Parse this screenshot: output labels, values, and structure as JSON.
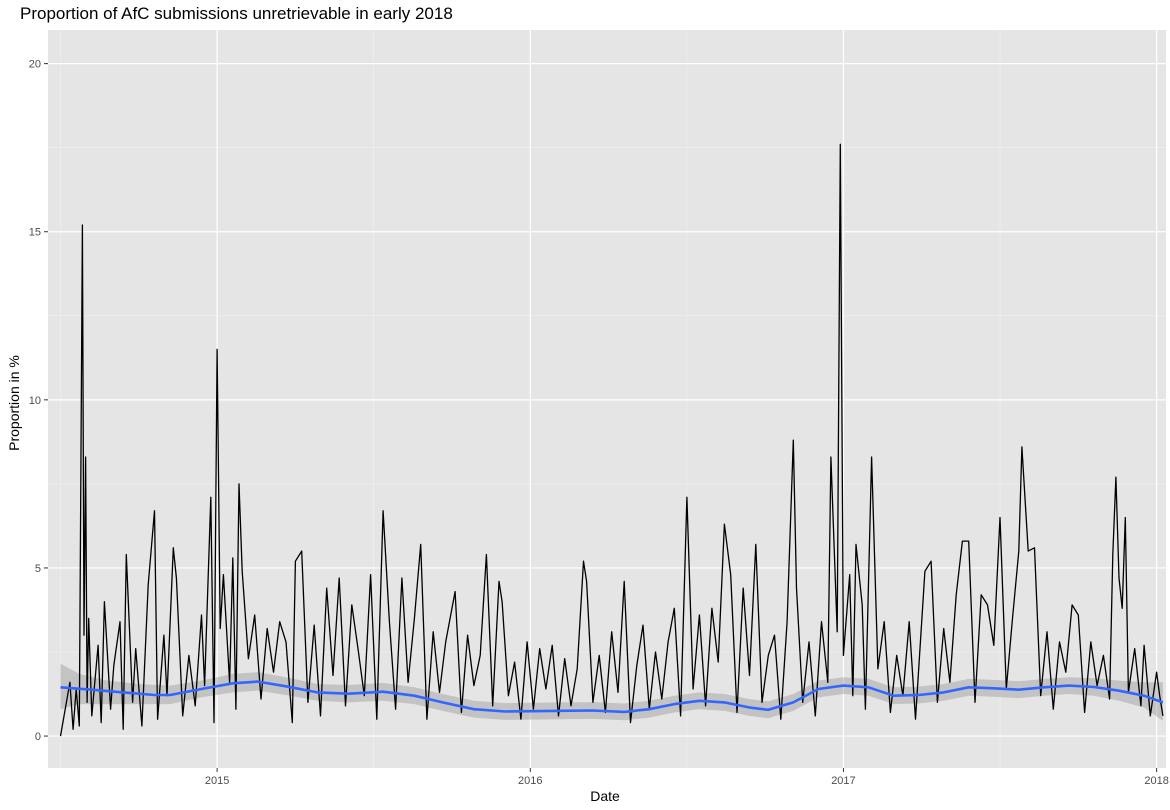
{
  "chart_data": {
    "type": "line",
    "title": "Proportion of AfC submissions unretrievable in early 2018",
    "xlabel": "Date",
    "ylabel": "Proportion in %",
    "xlim": [
      2014.46,
      2018.03
    ],
    "ylim": [
      -0.95,
      21.0
    ],
    "x_ticks": [
      {
        "value": 2015,
        "label": "2015"
      },
      {
        "value": 2016,
        "label": "2016"
      },
      {
        "value": 2017,
        "label": "2017"
      },
      {
        "value": 2018,
        "label": "2018"
      }
    ],
    "y_ticks": [
      {
        "value": 0,
        "label": "0"
      },
      {
        "value": 5,
        "label": "5"
      },
      {
        "value": 10,
        "label": "10"
      },
      {
        "value": 15,
        "label": "15"
      },
      {
        "value": 20,
        "label": "20"
      }
    ],
    "grid": true,
    "background_color": "#e5e5e5",
    "series": [
      {
        "color": "#000000",
        "values": [
          [
            2014.5,
            0.0
          ],
          [
            2014.53,
            1.6
          ],
          [
            2014.54,
            0.2
          ],
          [
            2014.55,
            1.4
          ],
          [
            2014.56,
            0.3
          ],
          [
            2014.57,
            15.2
          ],
          [
            2014.575,
            3.0
          ],
          [
            2014.58,
            8.3
          ],
          [
            2014.585,
            1.0
          ],
          [
            2014.59,
            3.5
          ],
          [
            2014.6,
            0.6
          ],
          [
            2014.62,
            2.7
          ],
          [
            2014.63,
            0.4
          ],
          [
            2014.64,
            4.0
          ],
          [
            2014.66,
            0.8
          ],
          [
            2014.67,
            2.1
          ],
          [
            2014.69,
            3.4
          ],
          [
            2014.7,
            0.2
          ],
          [
            2014.71,
            5.4
          ],
          [
            2014.73,
            1.0
          ],
          [
            2014.74,
            2.6
          ],
          [
            2014.76,
            0.3
          ],
          [
            2014.78,
            4.5
          ],
          [
            2014.8,
            6.7
          ],
          [
            2014.81,
            0.5
          ],
          [
            2014.83,
            3.0
          ],
          [
            2014.84,
            1.2
          ],
          [
            2014.86,
            5.6
          ],
          [
            2014.87,
            4.7
          ],
          [
            2014.89,
            0.6
          ],
          [
            2014.91,
            2.4
          ],
          [
            2014.93,
            0.9
          ],
          [
            2014.95,
            3.6
          ],
          [
            2014.96,
            1.5
          ],
          [
            2014.98,
            7.1
          ],
          [
            2014.99,
            0.4
          ],
          [
            2015.0,
            11.5
          ],
          [
            2015.01,
            3.2
          ],
          [
            2015.02,
            4.8
          ],
          [
            2015.04,
            1.6
          ],
          [
            2015.05,
            5.3
          ],
          [
            2015.06,
            0.8
          ],
          [
            2015.07,
            7.5
          ],
          [
            2015.08,
            4.9
          ],
          [
            2015.1,
            2.3
          ],
          [
            2015.12,
            3.6
          ],
          [
            2015.14,
            1.1
          ],
          [
            2015.16,
            3.2
          ],
          [
            2015.18,
            1.9
          ],
          [
            2015.2,
            3.4
          ],
          [
            2015.22,
            2.8
          ],
          [
            2015.24,
            0.4
          ],
          [
            2015.25,
            5.2
          ],
          [
            2015.27,
            5.5
          ],
          [
            2015.29,
            1.0
          ],
          [
            2015.31,
            3.3
          ],
          [
            2015.33,
            0.6
          ],
          [
            2015.35,
            4.4
          ],
          [
            2015.37,
            1.8
          ],
          [
            2015.39,
            4.7
          ],
          [
            2015.41,
            0.9
          ],
          [
            2015.43,
            3.9
          ],
          [
            2015.45,
            2.6
          ],
          [
            2015.47,
            1.2
          ],
          [
            2015.49,
            4.8
          ],
          [
            2015.51,
            0.5
          ],
          [
            2015.53,
            6.7
          ],
          [
            2015.55,
            3.4
          ],
          [
            2015.57,
            0.8
          ],
          [
            2015.59,
            4.7
          ],
          [
            2015.61,
            1.6
          ],
          [
            2015.63,
            3.5
          ],
          [
            2015.65,
            5.7
          ],
          [
            2015.67,
            0.5
          ],
          [
            2015.69,
            3.1
          ],
          [
            2015.71,
            1.3
          ],
          [
            2015.73,
            2.8
          ],
          [
            2015.76,
            4.3
          ],
          [
            2015.78,
            0.7
          ],
          [
            2015.8,
            3.0
          ],
          [
            2015.82,
            1.5
          ],
          [
            2015.84,
            2.4
          ],
          [
            2015.86,
            5.4
          ],
          [
            2015.88,
            0.9
          ],
          [
            2015.9,
            4.6
          ],
          [
            2015.91,
            4.0
          ],
          [
            2015.93,
            1.2
          ],
          [
            2015.95,
            2.2
          ],
          [
            2015.97,
            0.5
          ],
          [
            2015.99,
            2.8
          ],
          [
            2016.01,
            0.8
          ],
          [
            2016.03,
            2.6
          ],
          [
            2016.05,
            1.4
          ],
          [
            2016.07,
            2.7
          ],
          [
            2016.09,
            0.6
          ],
          [
            2016.11,
            2.3
          ],
          [
            2016.13,
            0.9
          ],
          [
            2016.15,
            2.0
          ],
          [
            2016.17,
            5.2
          ],
          [
            2016.18,
            4.6
          ],
          [
            2016.2,
            1.0
          ],
          [
            2016.22,
            2.4
          ],
          [
            2016.24,
            0.7
          ],
          [
            2016.26,
            3.1
          ],
          [
            2016.28,
            1.3
          ],
          [
            2016.3,
            4.6
          ],
          [
            2016.32,
            0.4
          ],
          [
            2016.34,
            2.1
          ],
          [
            2016.36,
            3.3
          ],
          [
            2016.38,
            0.8
          ],
          [
            2016.4,
            2.5
          ],
          [
            2016.42,
            1.1
          ],
          [
            2016.44,
            2.8
          ],
          [
            2016.46,
            3.8
          ],
          [
            2016.48,
            0.6
          ],
          [
            2016.5,
            7.1
          ],
          [
            2016.52,
            1.4
          ],
          [
            2016.54,
            3.6
          ],
          [
            2016.56,
            0.9
          ],
          [
            2016.58,
            3.8
          ],
          [
            2016.6,
            2.2
          ],
          [
            2016.62,
            6.3
          ],
          [
            2016.64,
            4.8
          ],
          [
            2016.66,
            0.7
          ],
          [
            2016.68,
            4.4
          ],
          [
            2016.7,
            1.8
          ],
          [
            2016.72,
            5.7
          ],
          [
            2016.74,
            1.0
          ],
          [
            2016.76,
            2.4
          ],
          [
            2016.78,
            3.0
          ],
          [
            2016.8,
            0.5
          ],
          [
            2016.82,
            3.4
          ],
          [
            2016.84,
            8.8
          ],
          [
            2016.85,
            4.4
          ],
          [
            2016.87,
            1.0
          ],
          [
            2016.89,
            2.8
          ],
          [
            2016.91,
            0.6
          ],
          [
            2016.93,
            3.4
          ],
          [
            2016.95,
            1.6
          ],
          [
            2016.96,
            8.3
          ],
          [
            2016.98,
            3.1
          ],
          [
            2016.99,
            17.6
          ],
          [
            2017.0,
            2.4
          ],
          [
            2017.02,
            4.8
          ],
          [
            2017.03,
            1.2
          ],
          [
            2017.04,
            5.7
          ],
          [
            2017.06,
            3.9
          ],
          [
            2017.07,
            0.8
          ],
          [
            2017.09,
            8.3
          ],
          [
            2017.11,
            2.0
          ],
          [
            2017.13,
            3.4
          ],
          [
            2017.15,
            0.7
          ],
          [
            2017.17,
            2.4
          ],
          [
            2017.19,
            1.2
          ],
          [
            2017.21,
            3.4
          ],
          [
            2017.23,
            0.5
          ],
          [
            2017.26,
            4.9
          ],
          [
            2017.28,
            5.2
          ],
          [
            2017.3,
            1.0
          ],
          [
            2017.32,
            3.2
          ],
          [
            2017.34,
            1.6
          ],
          [
            2017.36,
            4.2
          ],
          [
            2017.38,
            5.8
          ],
          [
            2017.4,
            5.8
          ],
          [
            2017.42,
            1.0
          ],
          [
            2017.44,
            4.2
          ],
          [
            2017.46,
            3.9
          ],
          [
            2017.48,
            2.7
          ],
          [
            2017.5,
            6.5
          ],
          [
            2017.52,
            1.4
          ],
          [
            2017.54,
            3.5
          ],
          [
            2017.56,
            5.5
          ],
          [
            2017.57,
            8.6
          ],
          [
            2017.59,
            5.5
          ],
          [
            2017.61,
            5.6
          ],
          [
            2017.63,
            1.2
          ],
          [
            2017.65,
            3.1
          ],
          [
            2017.67,
            0.8
          ],
          [
            2017.69,
            2.8
          ],
          [
            2017.71,
            1.9
          ],
          [
            2017.73,
            3.9
          ],
          [
            2017.75,
            3.6
          ],
          [
            2017.77,
            0.7
          ],
          [
            2017.79,
            2.8
          ],
          [
            2017.81,
            1.5
          ],
          [
            2017.83,
            2.4
          ],
          [
            2017.85,
            1.1
          ],
          [
            2017.86,
            5.4
          ],
          [
            2017.87,
            7.7
          ],
          [
            2017.88,
            4.7
          ],
          [
            2017.89,
            3.8
          ],
          [
            2017.9,
            6.5
          ],
          [
            2017.91,
            1.3
          ],
          [
            2017.93,
            2.6
          ],
          [
            2017.95,
            0.9
          ],
          [
            2017.96,
            2.7
          ],
          [
            2017.98,
            0.6
          ],
          [
            2018.0,
            1.9
          ],
          [
            2018.01,
            1.2
          ],
          [
            2018.02,
            0.6
          ]
        ]
      },
      {
        "color": "#3366ff",
        "values": [
          [
            2014.5,
            1.45
          ],
          [
            2014.6,
            1.38
          ],
          [
            2014.7,
            1.3
          ],
          [
            2014.8,
            1.22
          ],
          [
            2014.85,
            1.22
          ],
          [
            2014.95,
            1.4
          ],
          [
            2015.05,
            1.57
          ],
          [
            2015.13,
            1.62
          ],
          [
            2015.22,
            1.48
          ],
          [
            2015.32,
            1.3
          ],
          [
            2015.42,
            1.26
          ],
          [
            2015.53,
            1.32
          ],
          [
            2015.63,
            1.2
          ],
          [
            2015.72,
            1.0
          ],
          [
            2015.82,
            0.8
          ],
          [
            2015.92,
            0.73
          ],
          [
            2016.0,
            0.74
          ],
          [
            2016.1,
            0.75
          ],
          [
            2016.2,
            0.76
          ],
          [
            2016.3,
            0.72
          ],
          [
            2016.38,
            0.8
          ],
          [
            2016.46,
            0.95
          ],
          [
            2016.54,
            1.05
          ],
          [
            2016.62,
            1.0
          ],
          [
            2016.7,
            0.85
          ],
          [
            2016.76,
            0.78
          ],
          [
            2016.84,
            1.0
          ],
          [
            2016.92,
            1.4
          ],
          [
            2017.0,
            1.5
          ],
          [
            2017.08,
            1.45
          ],
          [
            2017.16,
            1.2
          ],
          [
            2017.24,
            1.22
          ],
          [
            2017.32,
            1.3
          ],
          [
            2017.4,
            1.45
          ],
          [
            2017.48,
            1.42
          ],
          [
            2017.56,
            1.38
          ],
          [
            2017.64,
            1.45
          ],
          [
            2017.72,
            1.5
          ],
          [
            2017.8,
            1.46
          ],
          [
            2017.88,
            1.35
          ],
          [
            2017.96,
            1.2
          ],
          [
            2018.02,
            1.0
          ]
        ]
      }
    ],
    "confidence_band": {
      "color": "#999999",
      "values": [
        [
          2014.5,
          0.8,
          2.15
        ],
        [
          2014.56,
          0.95,
          1.85
        ],
        [
          2014.65,
          0.95,
          1.65
        ],
        [
          2014.75,
          0.95,
          1.55
        ],
        [
          2014.85,
          0.95,
          1.5
        ],
        [
          2014.95,
          1.15,
          1.65
        ],
        [
          2015.05,
          1.3,
          1.85
        ],
        [
          2015.13,
          1.35,
          1.9
        ],
        [
          2015.22,
          1.22,
          1.75
        ],
        [
          2015.32,
          1.05,
          1.55
        ],
        [
          2015.42,
          1.0,
          1.52
        ],
        [
          2015.53,
          1.05,
          1.58
        ],
        [
          2015.63,
          0.95,
          1.45
        ],
        [
          2015.72,
          0.75,
          1.25
        ],
        [
          2015.82,
          0.55,
          1.05
        ],
        [
          2015.92,
          0.48,
          0.98
        ],
        [
          2016.0,
          0.49,
          0.99
        ],
        [
          2016.1,
          0.5,
          1.0
        ],
        [
          2016.2,
          0.51,
          1.01
        ],
        [
          2016.3,
          0.47,
          0.97
        ],
        [
          2016.38,
          0.55,
          1.05
        ],
        [
          2016.46,
          0.7,
          1.2
        ],
        [
          2016.54,
          0.8,
          1.3
        ],
        [
          2016.62,
          0.75,
          1.25
        ],
        [
          2016.7,
          0.6,
          1.1
        ],
        [
          2016.76,
          0.53,
          1.03
        ],
        [
          2016.84,
          0.75,
          1.25
        ],
        [
          2016.92,
          1.15,
          1.65
        ],
        [
          2017.0,
          1.25,
          1.75
        ],
        [
          2017.08,
          1.2,
          1.7
        ],
        [
          2017.16,
          0.95,
          1.45
        ],
        [
          2017.24,
          0.97,
          1.47
        ],
        [
          2017.32,
          1.05,
          1.55
        ],
        [
          2017.4,
          1.2,
          1.7
        ],
        [
          2017.48,
          1.17,
          1.67
        ],
        [
          2017.56,
          1.13,
          1.63
        ],
        [
          2017.64,
          1.2,
          1.7
        ],
        [
          2017.72,
          1.25,
          1.75
        ],
        [
          2017.8,
          1.2,
          1.72
        ],
        [
          2017.88,
          1.05,
          1.65
        ],
        [
          2017.96,
          0.85,
          1.6
        ],
        [
          2018.02,
          0.45,
          1.6
        ]
      ]
    }
  }
}
